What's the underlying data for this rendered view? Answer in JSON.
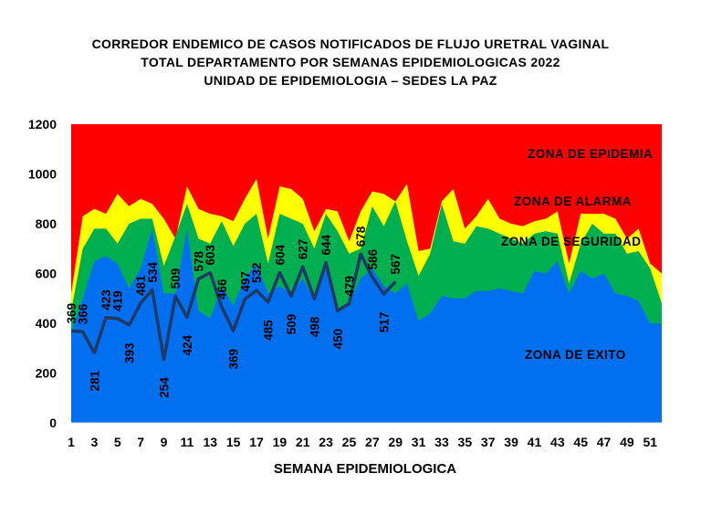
{
  "title_lines": [
    "CORREDOR ENDEMICO DE CASOS NOTIFICADOS DE FLUJO URETRAL VAGINAL",
    "TOTAL DEPARTAMENTO POR SEMANAS EPIDEMIOLOGICAS 2022",
    "UNIDAD DE EPIDEMIOLOGIA – SEDES LA PAZ"
  ],
  "chart_data": {
    "type": "area",
    "xlabel": "SEMANA EPIDEMIOLOGICA",
    "ylabel": "",
    "ylim": [
      0,
      1200
    ],
    "yticks": [
      0,
      200,
      400,
      600,
      800,
      1000,
      1200
    ],
    "xticks": [
      1,
      3,
      5,
      7,
      9,
      11,
      13,
      15,
      17,
      19,
      21,
      23,
      25,
      27,
      29,
      31,
      33,
      35,
      37,
      39,
      41,
      43,
      45,
      47,
      49,
      51
    ],
    "weeks": [
      1,
      2,
      3,
      4,
      5,
      6,
      7,
      8,
      9,
      10,
      11,
      12,
      13,
      14,
      15,
      16,
      17,
      18,
      19,
      20,
      21,
      22,
      23,
      24,
      25,
      26,
      27,
      28,
      29,
      30,
      31,
      32,
      33,
      34,
      35,
      36,
      37,
      38,
      39,
      40,
      41,
      42,
      43,
      44,
      45,
      46,
      47,
      48,
      49,
      50,
      51,
      52
    ],
    "zones": [
      {
        "name": "ZONA DE EXITO",
        "color": "#0070f0",
        "upper": [
          360,
          500,
          650,
          670,
          640,
          540,
          620,
          780,
          520,
          520,
          780,
          450,
          420,
          550,
          470,
          580,
          640,
          520,
          550,
          520,
          580,
          490,
          620,
          460,
          480,
          580,
          620,
          550,
          520,
          560,
          410,
          440,
          510,
          500,
          500,
          530,
          530,
          540,
          530,
          520,
          610,
          600,
          650,
          520,
          610,
          580,
          600,
          520,
          510,
          490,
          400,
          400
        ]
      },
      {
        "name": "ZONA DE SEGURIDAD",
        "color": "#00b050",
        "upper": [
          450,
          700,
          780,
          780,
          720,
          800,
          820,
          820,
          630,
          750,
          880,
          740,
          720,
          810,
          710,
          800,
          840,
          640,
          840,
          820,
          800,
          700,
          840,
          770,
          680,
          700,
          870,
          790,
          890,
          730,
          590,
          680,
          880,
          730,
          720,
          790,
          780,
          760,
          740,
          720,
          760,
          770,
          760,
          560,
          720,
          800,
          760,
          760,
          680,
          690,
          620,
          480
        ]
      },
      {
        "name": "ZONA DE ALARMA",
        "color": "#ffff00",
        "upper": [
          520,
          830,
          860,
          840,
          920,
          870,
          900,
          880,
          820,
          740,
          950,
          860,
          840,
          830,
          810,
          900,
          980,
          740,
          950,
          940,
          900,
          770,
          860,
          850,
          730,
          850,
          930,
          920,
          890,
          960,
          690,
          700,
          890,
          940,
          780,
          830,
          900,
          820,
          800,
          790,
          810,
          820,
          850,
          640,
          840,
          840,
          840,
          820,
          740,
          780,
          640,
          600
        ]
      },
      {
        "name": "ZONA DE EPIDEMIA",
        "color": "#ff0000",
        "upper_value": 1200
      }
    ],
    "series": [
      {
        "name": "",
        "color": "#1f3864",
        "x": [
          1,
          2,
          3,
          4,
          5,
          6,
          7,
          8,
          9,
          10,
          11,
          12,
          13,
          14,
          15,
          16,
          17,
          18,
          19,
          20,
          21,
          22,
          23,
          24,
          25,
          26,
          27,
          28,
          29
        ],
        "values": [
          369,
          366,
          281,
          423,
          419,
          393,
          481,
          534,
          254,
          509,
          424,
          578,
          603,
          466,
          369,
          497,
          532,
          485,
          604,
          509,
          627,
          498,
          644,
          450,
          479,
          678,
          586,
          517,
          567
        ]
      }
    ],
    "data_label_offsets_note": "",
    "grid": false,
    "legend": "none"
  }
}
